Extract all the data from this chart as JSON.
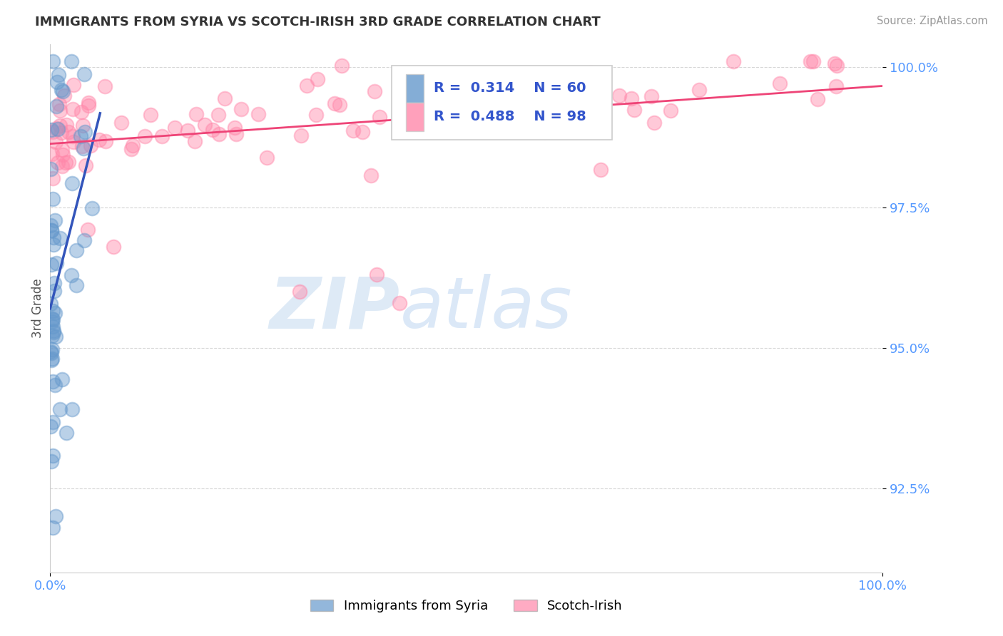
{
  "title": "IMMIGRANTS FROM SYRIA VS SCOTCH-IRISH 3RD GRADE CORRELATION CHART",
  "source_text": "Source: ZipAtlas.com",
  "ylabel": "3rd Grade",
  "xlim": [
    0.0,
    1.0
  ],
  "ylim": [
    0.91,
    1.004
  ],
  "x_tick_labels": [
    "0.0%",
    "100.0%"
  ],
  "y_tick_labels": [
    "92.5%",
    "95.0%",
    "97.5%",
    "100.0%"
  ],
  "y_tick_vals": [
    0.925,
    0.95,
    0.975,
    1.0
  ],
  "legend_r1": "R = 0.314",
  "legend_n1": "N = 60",
  "legend_r2": "R = 0.488",
  "legend_n2": "N = 98",
  "syria_color": "#6699cc",
  "scotch_color": "#ff88aa",
  "trendline_syria_color": "#3355bb",
  "trendline_scotch_color": "#ee4477",
  "watermark_zip": "ZIP",
  "watermark_atlas": "atlas",
  "background_color": "#ffffff",
  "grid_color": "#cccccc",
  "tick_color": "#5599ff",
  "legend_box_color": "#eeeeee"
}
